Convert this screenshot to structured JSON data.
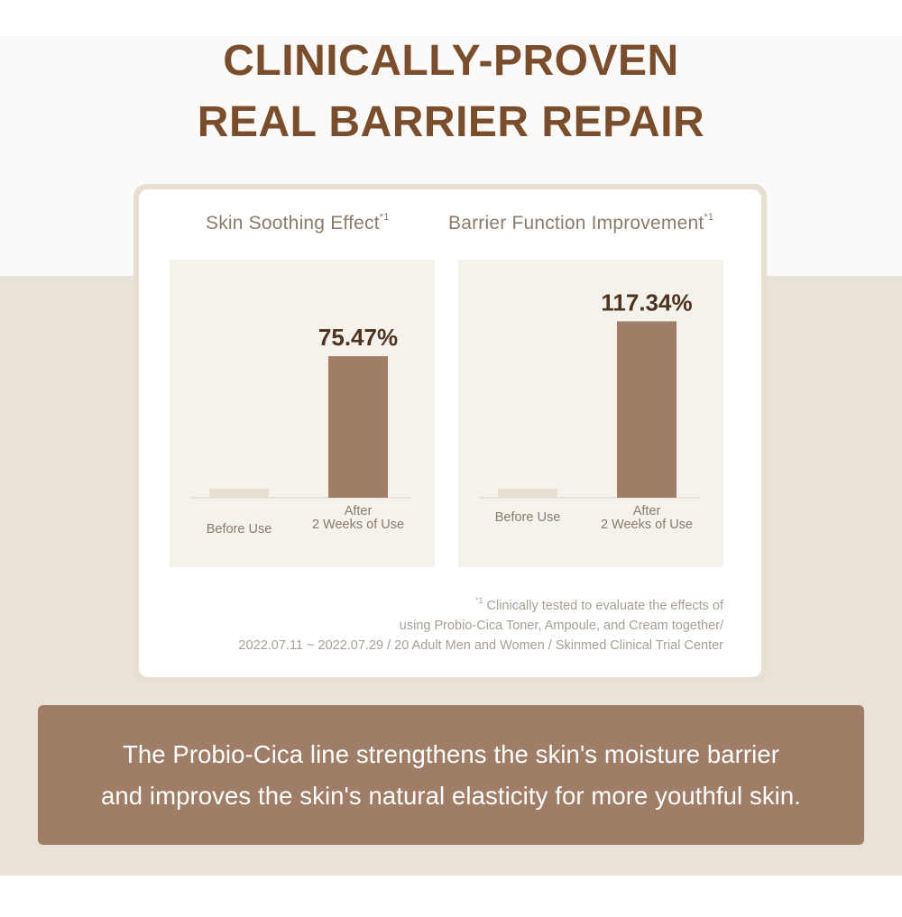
{
  "headline": {
    "line1": "CLINICALLY-PROVEN",
    "line2": "REAL BARRIER REPAIR"
  },
  "chart_data": [
    {
      "type": "bar",
      "title": "Skin Soothing Effect",
      "title_footnote_mark": "*1",
      "categories": [
        "Before Use",
        "After\n2 Weeks of Use"
      ],
      "values": [
        0,
        75.47
      ],
      "data_labels": [
        "",
        "75.47%"
      ],
      "ylim": [
        0,
        100
      ],
      "grid": false,
      "legend": "none",
      "colors": [
        "#e6dfd2",
        "#a07d66"
      ]
    },
    {
      "type": "bar",
      "title": "Barrier Function Improvement",
      "title_footnote_mark": "*1",
      "categories": [
        "Before Use",
        "After\n2 Weeks of Use"
      ],
      "values": [
        0,
        117.34
      ],
      "data_labels": [
        "",
        "117.34%"
      ],
      "ylim": [
        0,
        150
      ],
      "grid": false,
      "legend": "none",
      "colors": [
        "#e6dfd2",
        "#a07d66"
      ]
    }
  ],
  "footnote": {
    "mark": "*1",
    "line1": "Clinically tested to evaluate the effects of",
    "line2": "using Probio-Cica Toner, Ampoule, and Cream together/",
    "line3": "2022.07.11 ~ 2022.07.29 / 20 Adult Men and Women / Skinmed Clinical Trial Center"
  },
  "message": {
    "line1": "The Probio-Cica line strengthens the skin's moisture barrier",
    "line2": "and improves the skin's natural elasticity for more youthful skin."
  },
  "colors": {
    "headline": "#7a4d2d",
    "bar": "#a07d66",
    "baseline_bar": "#e6dfd2",
    "value_label": "#4e3320",
    "axis_text": "#8c7a6a",
    "background_band": "#e9e2d7"
  }
}
